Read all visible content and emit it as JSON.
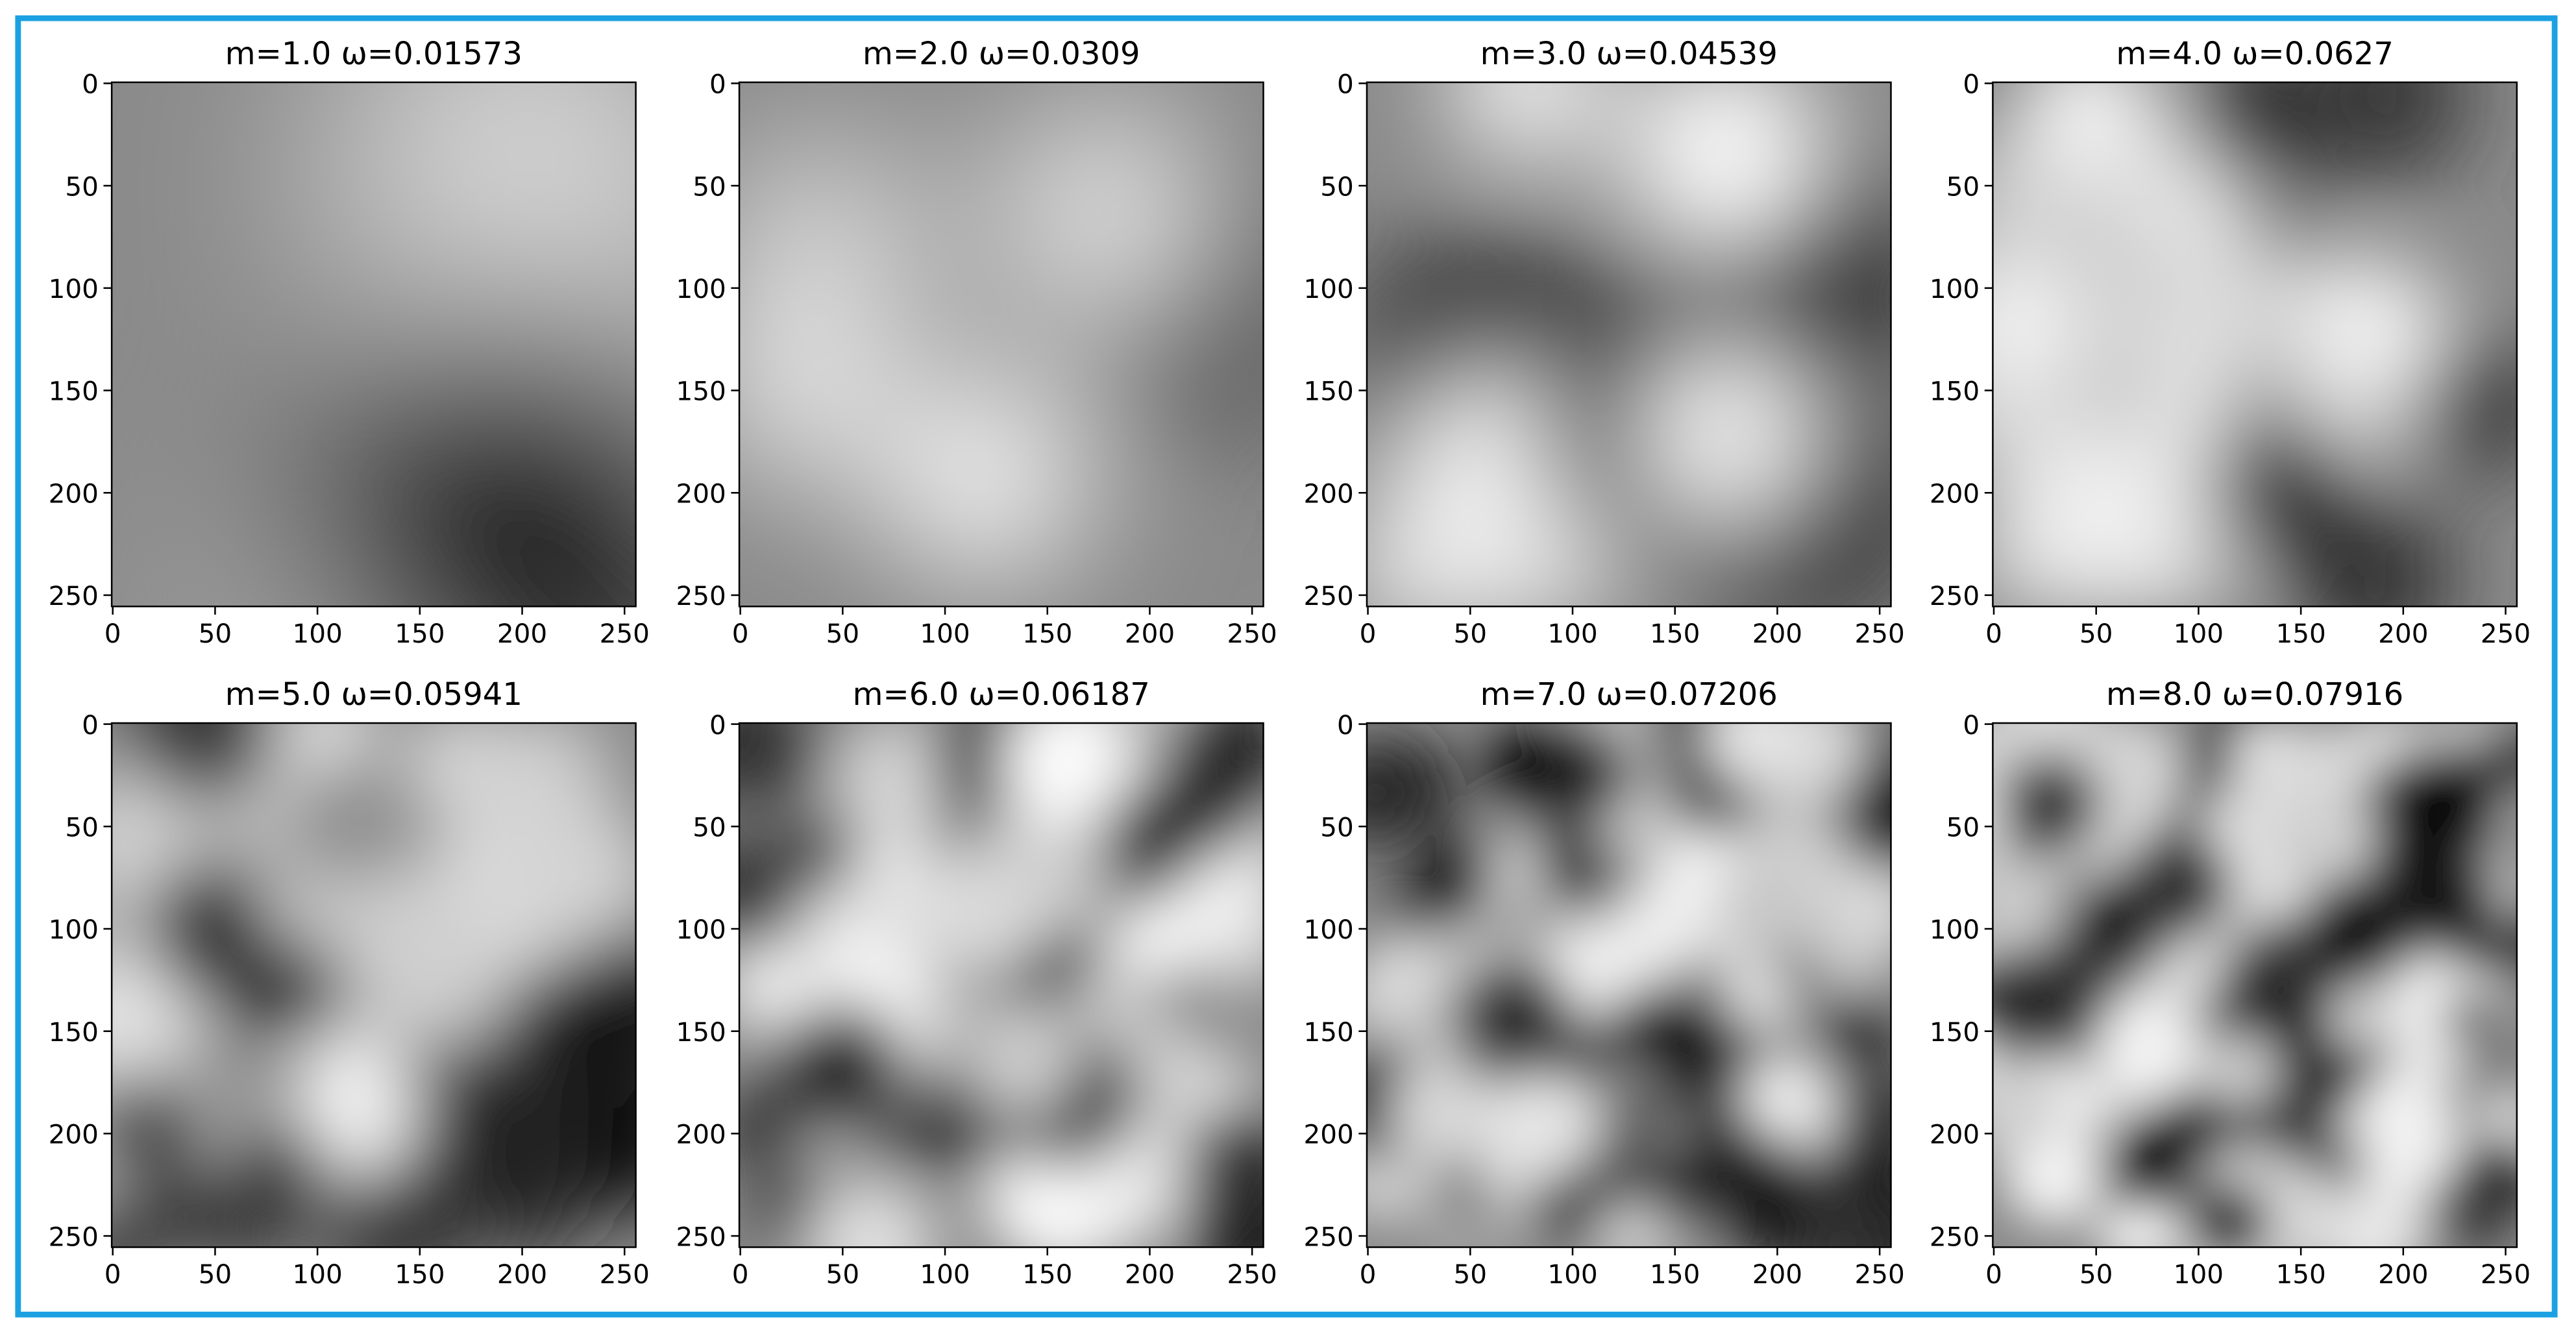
{
  "chart_data": [
    {
      "type": "image",
      "title": "m=1.0 ω=0.01573",
      "xlim": [
        -0.5,
        255.5
      ],
      "ylim": [
        255.5,
        -0.5
      ],
      "xticks": [
        0,
        50,
        100,
        150,
        200,
        250
      ],
      "yticks": [
        0,
        50,
        100,
        150,
        200,
        250
      ]
    },
    {
      "type": "image",
      "title": "m=2.0 ω=0.0309",
      "xlim": [
        -0.5,
        255.5
      ],
      "ylim": [
        255.5,
        -0.5
      ],
      "xticks": [
        0,
        50,
        100,
        150,
        200,
        250
      ],
      "yticks": [
        0,
        50,
        100,
        150,
        200,
        250
      ]
    },
    {
      "type": "image",
      "title": "m=3.0 ω=0.04539",
      "xlim": [
        -0.5,
        255.5
      ],
      "ylim": [
        255.5,
        -0.5
      ],
      "xticks": [
        0,
        50,
        100,
        150,
        200,
        250
      ],
      "yticks": [
        0,
        50,
        100,
        150,
        200,
        250
      ]
    },
    {
      "type": "image",
      "title": "m=4.0 ω=0.0627",
      "xlim": [
        -0.5,
        255.5
      ],
      "ylim": [
        255.5,
        -0.5
      ],
      "xticks": [
        0,
        50,
        100,
        150,
        200,
        250
      ],
      "yticks": [
        0,
        50,
        100,
        150,
        200,
        250
      ]
    },
    {
      "type": "image",
      "title": "m=5.0 ω=0.05941",
      "xlim": [
        -0.5,
        255.5
      ],
      "ylim": [
        255.5,
        -0.5
      ],
      "xticks": [
        0,
        50,
        100,
        150,
        200,
        250
      ],
      "yticks": [
        0,
        50,
        100,
        150,
        200,
        250
      ]
    },
    {
      "type": "image",
      "title": "m=6.0 ω=0.06187",
      "xlim": [
        -0.5,
        255.5
      ],
      "ylim": [
        255.5,
        -0.5
      ],
      "xticks": [
        0,
        50,
        100,
        150,
        200,
        250
      ],
      "yticks": [
        0,
        50,
        100,
        150,
        200,
        250
      ]
    },
    {
      "type": "image",
      "title": "m=7.0 ω=0.07206",
      "xlim": [
        -0.5,
        255.5
      ],
      "ylim": [
        255.5,
        -0.5
      ],
      "xticks": [
        0,
        50,
        100,
        150,
        200,
        250
      ],
      "yticks": [
        0,
        50,
        100,
        150,
        200,
        250
      ]
    },
    {
      "type": "image",
      "title": "m=8.0 ω=0.07916",
      "xlim": [
        -0.5,
        255.5
      ],
      "ylim": [
        255.5,
        -0.5
      ],
      "xticks": [
        0,
        50,
        100,
        150,
        200,
        250
      ],
      "yticks": [
        0,
        50,
        100,
        150,
        200,
        250
      ]
    }
  ]
}
